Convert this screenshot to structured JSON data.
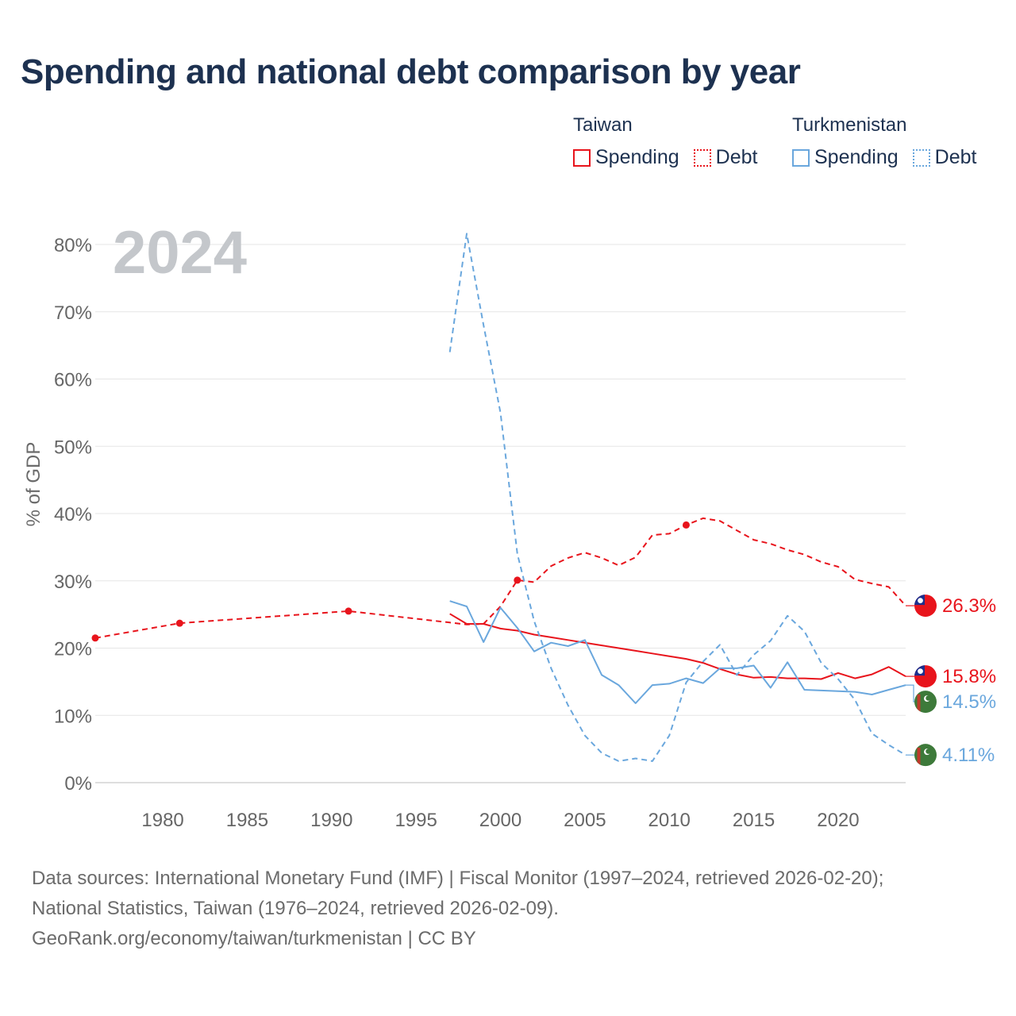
{
  "chart_data": {
    "type": "line",
    "title": "Spending and national debt comparison by year",
    "year_label": "2024",
    "ylabel": "% of GDP",
    "xlim": [
      1976,
      2024
    ],
    "ylim": [
      0,
      80
    ],
    "x_ticks": [
      1980,
      1985,
      1990,
      1995,
      2000,
      2005,
      2010,
      2015,
      2020
    ],
    "y_ticks": [
      0,
      10,
      20,
      30,
      40,
      50,
      60,
      70,
      80
    ],
    "y_tick_labels": [
      "0%",
      "10%",
      "20%",
      "30%",
      "40%",
      "50%",
      "60%",
      "70%",
      "80%"
    ],
    "legend": {
      "groups": [
        {
          "name": "Taiwan",
          "color": "#e8141c",
          "spending_label": "Spending",
          "debt_label": "Debt"
        },
        {
          "name": "Turkmenistan",
          "color": "#6aa7dd",
          "spending_label": "Spending",
          "debt_label": "Debt"
        }
      ]
    },
    "series": [
      {
        "name": "Taiwan Spending",
        "country": "Taiwan",
        "kind": "spending",
        "color": "#e8141c",
        "end_label": "15.8%",
        "points": [
          [
            1997,
            25.1
          ],
          [
            1998,
            23.6
          ],
          [
            1999,
            23.6
          ],
          [
            2000,
            22.9
          ],
          [
            2001,
            22.6
          ],
          [
            2002,
            22.0
          ],
          [
            2003,
            21.6
          ],
          [
            2004,
            21.2
          ],
          [
            2005,
            20.8
          ],
          [
            2006,
            20.4
          ],
          [
            2007,
            20.0
          ],
          [
            2008,
            19.6
          ],
          [
            2009,
            19.2
          ],
          [
            2010,
            18.8
          ],
          [
            2011,
            18.4
          ],
          [
            2012,
            17.8
          ],
          [
            2013,
            16.9
          ],
          [
            2014,
            16.1
          ],
          [
            2015,
            15.6
          ],
          [
            2016,
            15.7
          ],
          [
            2017,
            15.5
          ],
          [
            2018,
            15.5
          ],
          [
            2019,
            15.4
          ],
          [
            2020,
            16.3
          ],
          [
            2021,
            15.5
          ],
          [
            2022,
            16.1
          ],
          [
            2023,
            17.2
          ],
          [
            2024,
            15.8
          ]
        ]
      },
      {
        "name": "Taiwan Debt",
        "country": "Taiwan",
        "kind": "debt",
        "color": "#e8141c",
        "end_label": "26.3%",
        "markers": [
          1976,
          1981,
          1991,
          2001,
          2011
        ],
        "points": [
          [
            1976,
            21.5
          ],
          [
            1981,
            23.7
          ],
          [
            1991,
            25.5
          ],
          [
            1997,
            23.8
          ],
          [
            1998,
            23.5
          ],
          [
            1999,
            23.6
          ],
          [
            2000,
            26.2
          ],
          [
            2001,
            30.1
          ],
          [
            2002,
            29.8
          ],
          [
            2003,
            32.2
          ],
          [
            2004,
            33.4
          ],
          [
            2005,
            34.2
          ],
          [
            2006,
            33.4
          ],
          [
            2007,
            32.3
          ],
          [
            2008,
            33.5
          ],
          [
            2009,
            36.8
          ],
          [
            2010,
            37.0
          ],
          [
            2011,
            38.3
          ],
          [
            2012,
            39.3
          ],
          [
            2013,
            38.9
          ],
          [
            2014,
            37.5
          ],
          [
            2015,
            36.1
          ],
          [
            2016,
            35.5
          ],
          [
            2017,
            34.6
          ],
          [
            2018,
            33.9
          ],
          [
            2019,
            32.8
          ],
          [
            2020,
            32.1
          ],
          [
            2021,
            30.2
          ],
          [
            2022,
            29.6
          ],
          [
            2023,
            29.1
          ],
          [
            2024,
            26.3
          ]
        ]
      },
      {
        "name": "Turkmenistan Spending",
        "country": "Turkmenistan",
        "kind": "spending",
        "color": "#6aa7dd",
        "end_label": "14.5%",
        "points": [
          [
            1997,
            27.0
          ],
          [
            1998,
            26.2
          ],
          [
            1999,
            20.9
          ],
          [
            2000,
            26.0
          ],
          [
            2001,
            23.0
          ],
          [
            2002,
            19.5
          ],
          [
            2003,
            20.8
          ],
          [
            2004,
            20.3
          ],
          [
            2005,
            21.2
          ],
          [
            2006,
            16.0
          ],
          [
            2007,
            14.5
          ],
          [
            2008,
            11.8
          ],
          [
            2009,
            14.5
          ],
          [
            2010,
            14.7
          ],
          [
            2011,
            15.5
          ],
          [
            2012,
            14.8
          ],
          [
            2013,
            17.0
          ],
          [
            2014,
            17.0
          ],
          [
            2015,
            17.4
          ],
          [
            2016,
            14.1
          ],
          [
            2017,
            17.9
          ],
          [
            2018,
            13.8
          ],
          [
            2019,
            13.7
          ],
          [
            2020,
            13.6
          ],
          [
            2021,
            13.5
          ],
          [
            2022,
            13.1
          ],
          [
            2023,
            13.8
          ],
          [
            2024,
            14.5
          ]
        ]
      },
      {
        "name": "Turkmenistan Debt",
        "country": "Turkmenistan",
        "kind": "debt",
        "color": "#6aa7dd",
        "end_label": "4.11%",
        "points": [
          [
            1997,
            64.0
          ],
          [
            1998,
            81.6
          ],
          [
            1999,
            68.0
          ],
          [
            2000,
            55.0
          ],
          [
            2001,
            34.0
          ],
          [
            2002,
            24.0
          ],
          [
            2003,
            17.0
          ],
          [
            2004,
            11.5
          ],
          [
            2005,
            7.0
          ],
          [
            2006,
            4.4
          ],
          [
            2007,
            3.2
          ],
          [
            2008,
            3.6
          ],
          [
            2009,
            3.2
          ],
          [
            2010,
            7.0
          ],
          [
            2011,
            14.9
          ],
          [
            2012,
            18.0
          ],
          [
            2013,
            20.5
          ],
          [
            2014,
            16.0
          ],
          [
            2015,
            19.0
          ],
          [
            2016,
            21.1
          ],
          [
            2017,
            24.8
          ],
          [
            2018,
            22.5
          ],
          [
            2019,
            17.8
          ],
          [
            2020,
            15.4
          ],
          [
            2021,
            12.3
          ],
          [
            2022,
            7.3
          ],
          [
            2023,
            5.6
          ],
          [
            2024,
            4.11
          ]
        ]
      }
    ]
  },
  "footer": {
    "line1": "Data sources: International Monetary Fund (IMF) | Fiscal Monitor (1997–2024, retrieved 2026-02-20);",
    "line2": "National Statistics, Taiwan (1976–2024, retrieved 2026-02-09).",
    "line3": "GeoRank.org/economy/taiwan/turkmenistan | CC BY"
  }
}
